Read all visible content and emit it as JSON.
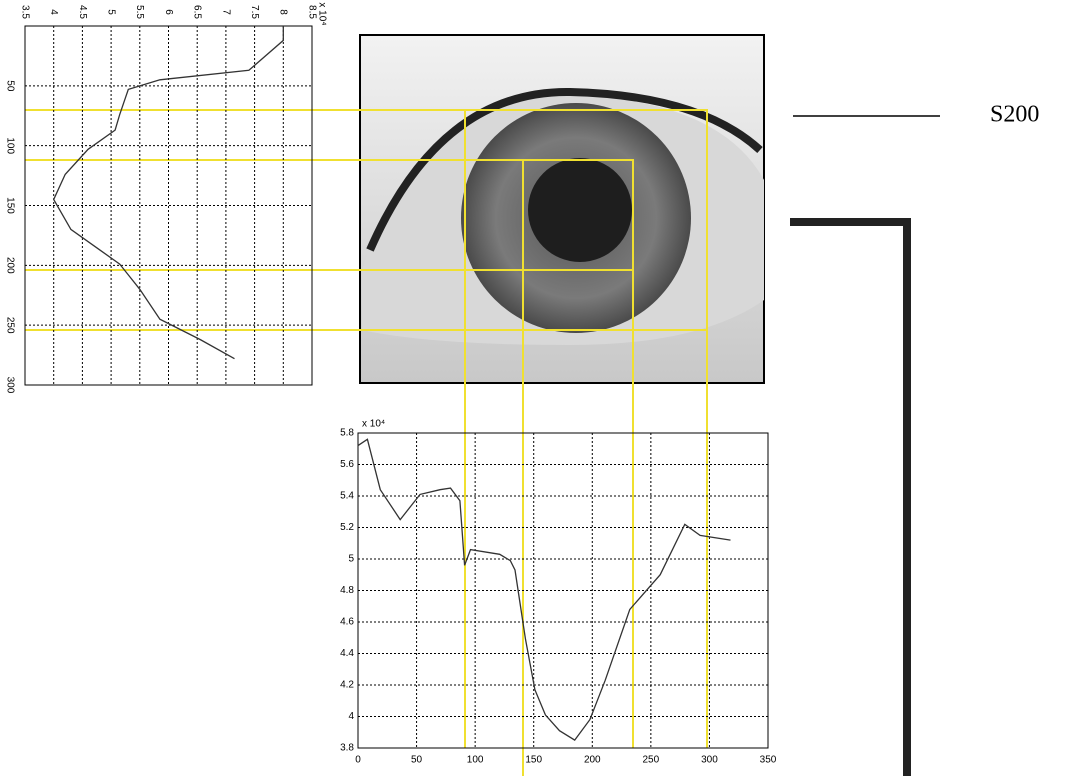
{
  "chart_data": [
    {
      "type": "line",
      "orientation": "rotated",
      "exponent_label": "x 10⁴",
      "color": "#333333",
      "grid": true,
      "x": [
        0,
        12,
        37,
        45,
        53,
        74,
        87,
        103,
        124,
        145,
        170,
        187,
        199,
        220,
        245,
        262,
        278
      ],
      "values": [
        8.0,
        8.0,
        7.4,
        5.85,
        5.3,
        5.15,
        5.07,
        4.6,
        4.2,
        4.0,
        4.3,
        4.8,
        5.15,
        5.5,
        5.85,
        6.55,
        7.15
      ],
      "xlim": [
        0,
        300
      ],
      "xticks": [
        50,
        100,
        150,
        200,
        250,
        300
      ],
      "ylim": [
        3.5,
        8.5
      ],
      "yticks": [
        3.5,
        4,
        4.5,
        5,
        5.5,
        6,
        6.5,
        7,
        7.5,
        8,
        8.5
      ]
    },
    {
      "type": "line",
      "exponent_label": "x 10⁴",
      "color": "#333333",
      "grid": true,
      "x": [
        0,
        8,
        19,
        36,
        53,
        70,
        79,
        87,
        91,
        96,
        121,
        130,
        134,
        143,
        151,
        160,
        172,
        185,
        198,
        211,
        232,
        258,
        279,
        292,
        318
      ],
      "values": [
        5.72,
        5.76,
        5.44,
        5.25,
        5.41,
        5.44,
        5.45,
        5.37,
        4.96,
        5.06,
        5.03,
        4.99,
        4.93,
        4.49,
        4.17,
        4.01,
        3.91,
        3.85,
        3.98,
        4.23,
        4.68,
        4.9,
        5.22,
        5.15,
        5.12
      ],
      "xlim": [
        0,
        350
      ],
      "xticks": [
        0,
        50,
        100,
        150,
        200,
        250,
        300,
        350
      ],
      "ylim": [
        3.8,
        5.8
      ],
      "yticks": [
        3.8,
        4,
        4.2,
        4.4,
        4.6,
        4.8,
        5,
        5.2,
        5.4,
        5.6,
        5.8
      ]
    }
  ],
  "label": "S200"
}
